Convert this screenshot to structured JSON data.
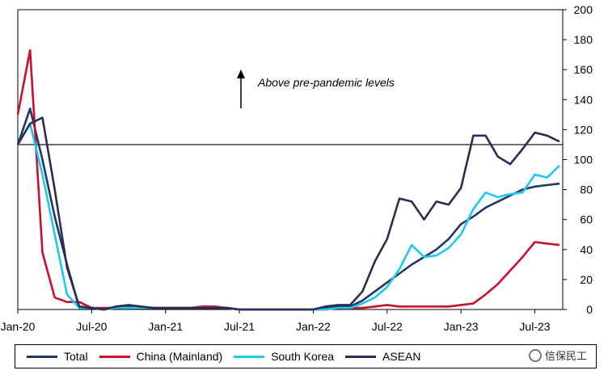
{
  "chart_data": {
    "type": "line",
    "title": "",
    "xlabel": "",
    "ylabel": "",
    "ylim": [
      0,
      200
    ],
    "y_ticks": [
      "0",
      "20",
      "40",
      "60",
      "80",
      "100",
      "120",
      "140",
      "160",
      "180",
      "200"
    ],
    "y_axis_side": "right",
    "x_ticks": [
      "Jan-20",
      "Jul-20",
      "Jan-21",
      "Jul-21",
      "Jan-22",
      "Jul-22",
      "Jan-23",
      "Jul-23"
    ],
    "x_tick_months": [
      0,
      6,
      12,
      18,
      24,
      30,
      36,
      42
    ],
    "months": [
      0,
      1,
      2,
      3,
      4,
      5,
      6,
      7,
      8,
      9,
      10,
      11,
      12,
      13,
      14,
      15,
      16,
      17,
      18,
      19,
      20,
      21,
      22,
      23,
      24,
      25,
      26,
      27,
      28,
      29,
      30,
      31,
      32,
      33,
      34,
      35,
      36,
      37,
      38,
      39,
      40,
      41,
      42,
      43,
      44
    ],
    "reference_line": 110,
    "annotation": "Above pre-pandemic levels",
    "legend_position": "bottom",
    "series": [
      {
        "name": "Total",
        "color": "#1f3864",
        "values": [
          110,
          134,
          100,
          62,
          30,
          1,
          1,
          0,
          1,
          2,
          1,
          1,
          1,
          1,
          1,
          1,
          1,
          1,
          0,
          0,
          0,
          0,
          0,
          0,
          0,
          1,
          2,
          2,
          6,
          12,
          18,
          24,
          30,
          35,
          40,
          47,
          57,
          62,
          68,
          72,
          76,
          80,
          82,
          83,
          84
        ]
      },
      {
        "name": "China (Mainland)",
        "color": "#c8102e",
        "values": [
          130,
          173,
          38,
          8,
          5,
          5,
          1,
          1,
          1,
          1,
          1,
          1,
          1,
          1,
          1,
          2,
          2,
          1,
          0,
          0,
          0,
          0,
          0,
          0,
          0,
          0,
          1,
          1,
          1,
          2,
          3,
          2,
          2,
          2,
          2,
          2,
          3,
          4,
          10,
          17,
          26,
          35,
          45,
          44,
          43
        ]
      },
      {
        "name": "South Korea",
        "color": "#1ec8f0",
        "values": [
          110,
          124,
          90,
          50,
          10,
          1,
          1,
          0,
          1,
          1,
          1,
          1,
          1,
          1,
          1,
          1,
          1,
          1,
          0,
          0,
          0,
          0,
          0,
          0,
          0,
          0,
          1,
          1,
          4,
          8,
          15,
          27,
          43,
          35,
          36,
          41,
          50,
          67,
          78,
          75,
          77,
          78,
          90,
          88,
          96
        ]
      },
      {
        "name": "ASEAN",
        "color": "#2b2d55",
        "values": [
          110,
          124,
          128,
          80,
          28,
          2,
          1,
          0,
          2,
          3,
          2,
          1,
          1,
          1,
          1,
          1,
          1,
          1,
          0,
          0,
          0,
          0,
          0,
          0,
          0,
          2,
          3,
          3,
          12,
          32,
          47,
          74,
          72,
          60,
          72,
          70,
          81,
          116,
          116,
          102,
          97,
          107,
          118,
          116,
          112
        ]
      }
    ]
  },
  "watermark": {
    "text": "信保民工"
  }
}
